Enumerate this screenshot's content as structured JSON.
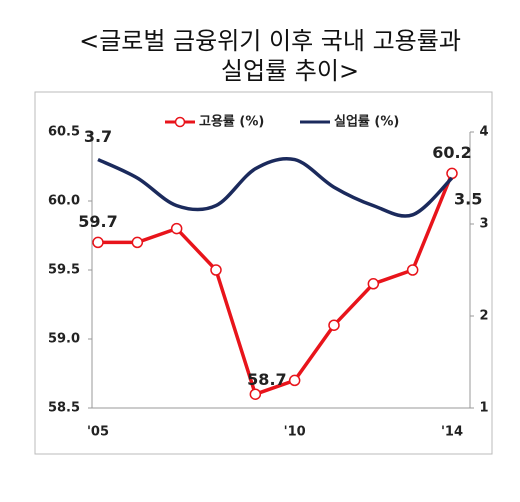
{
  "chart_data": {
    "type": "line",
    "title": [
      "<글로벌 금융위기 이후 국내 고용률과",
      "실업률 추이>"
    ],
    "categories": [
      "'05",
      null,
      null,
      null,
      null,
      "'10",
      null,
      null,
      null,
      "'14"
    ],
    "series": [
      {
        "name": "고용률 (%)",
        "color": "#e8141b",
        "values": [
          59.7,
          59.7,
          59.8,
          59.5,
          58.6,
          58.7,
          59.1,
          59.4,
          59.5,
          60.2
        ],
        "value_labels": [
          "59.7",
          null,
          null,
          null,
          null,
          "58.7",
          null,
          null,
          null,
          "60.2"
        ]
      },
      {
        "name": "실업률 (%)",
        "color": "#1b2a5c",
        "axis": "y2",
        "values": [
          3.7,
          3.5,
          3.2,
          3.2,
          3.6,
          3.7,
          3.4,
          3.2,
          3.1,
          3.5
        ],
        "value_labels": [
          "3.7",
          null,
          null,
          null,
          null,
          null,
          null,
          null,
          null,
          "3.5"
        ]
      }
    ],
    "ylim": [
      58.5,
      60.5
    ],
    "yticks": [
      58.5,
      {
        "value": 59,
        "label": "59.0"
      },
      59.5,
      {
        "value": 60,
        "label": "60.0"
      },
      60.5
    ],
    "y2lim": [
      1,
      4
    ],
    "y2ticks": [
      1,
      2,
      3,
      4
    ],
    "legend": "top"
  }
}
